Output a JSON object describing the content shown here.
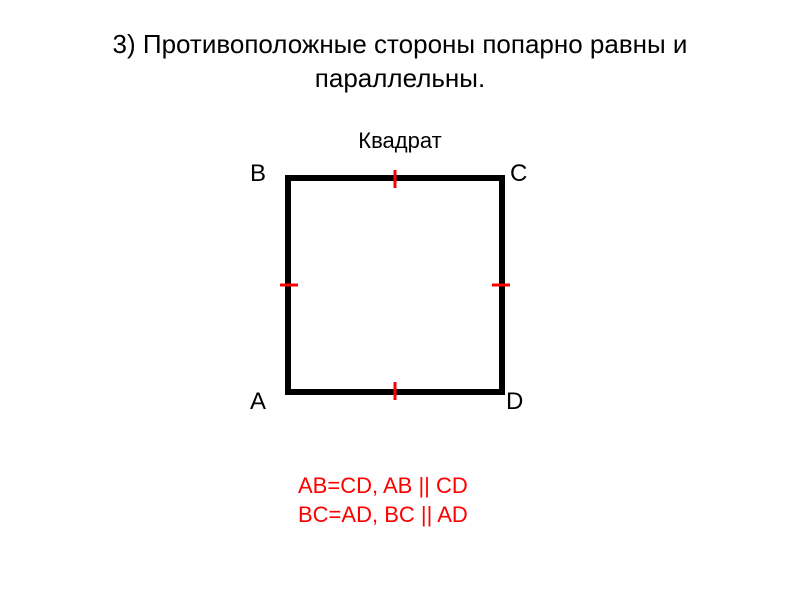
{
  "title_line1": "3) Противоположные стороны попарно равны и",
  "title_line2": "параллельны.",
  "subtitle": "Квадрат",
  "vertices": {
    "A": "A",
    "B": "B",
    "C": "C",
    "D": "D"
  },
  "equations": {
    "line1": "AB=CD, AB || CD",
    "line2": "BC=AD, BC || AD",
    "color": "#ff0000"
  },
  "square": {
    "size": 214,
    "stroke_color": "#000000",
    "stroke_width": 6,
    "tick_color": "#ff0000",
    "tick_stroke_width": 3,
    "tick_length": 20
  }
}
